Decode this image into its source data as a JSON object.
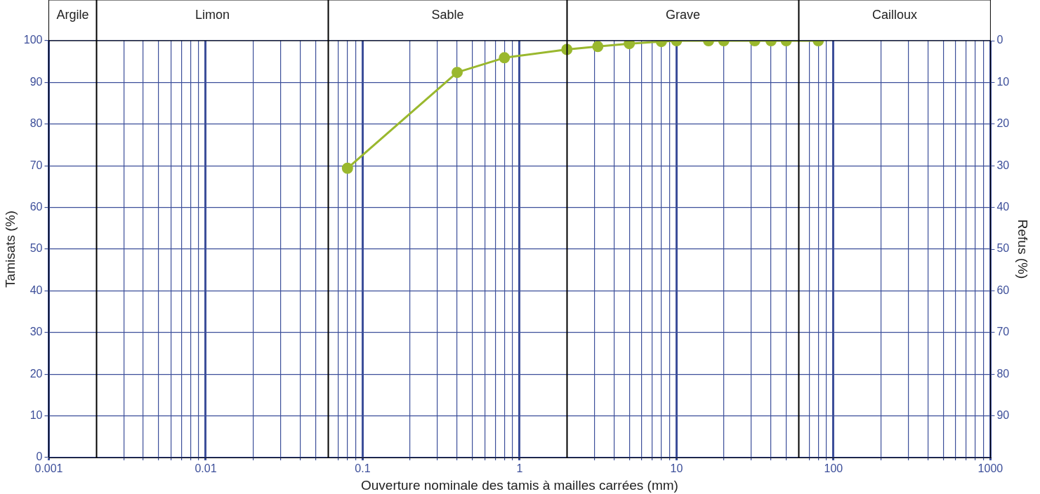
{
  "chart_data": {
    "type": "line",
    "xlabel": "Ouverture nominale des tamis à mailles carrées (mm)",
    "ylabel": "Tamisats (%)",
    "y2label": "Refus (%)",
    "x": [
      0.08,
      0.4,
      0.8,
      2,
      3.15,
      5,
      8,
      10,
      16,
      20,
      31.5,
      40,
      50,
      80
    ],
    "series": [
      {
        "color": "#9ab82e",
        "values": [
          69.4,
          92.4,
          95.9,
          97.9,
          98.6,
          99.3,
          99.8,
          100,
          100,
          100,
          100,
          100,
          100,
          100
        ]
      }
    ],
    "log": "x",
    "xlim": [
      0.001,
      1000
    ],
    "xticks": [
      0.001,
      {
        "value": 0.003,
        "label": null
      },
      {
        "value": 0.004,
        "label": null
      },
      {
        "value": 0.005,
        "label": null
      },
      {
        "value": 0.006,
        "label": null
      },
      {
        "value": 0.007,
        "label": null
      },
      {
        "value": 0.008,
        "label": null
      },
      {
        "value": 0.009,
        "label": null
      },
      0.01,
      {
        "value": 0.02,
        "label": null
      },
      {
        "value": 0.03,
        "label": null
      },
      {
        "value": 0.04,
        "label": null
      },
      {
        "value": 0.05,
        "label": null
      },
      {
        "value": 0.07,
        "label": null
      },
      {
        "value": 0.08,
        "label": null
      },
      {
        "value": 0.09,
        "label": null
      },
      0.1,
      {
        "value": 0.2,
        "label": null
      },
      {
        "value": 0.3,
        "label": null
      },
      {
        "value": 0.4,
        "label": null
      },
      {
        "value": 0.5,
        "label": null
      },
      {
        "value": 0.6,
        "label": null
      },
      {
        "value": 0.7,
        "label": null
      },
      {
        "value": 0.8,
        "label": null
      },
      {
        "value": 0.9,
        "label": null
      },
      1,
      {
        "value": 3,
        "label": null
      },
      {
        "value": 4,
        "label": null
      },
      {
        "value": 5,
        "label": null
      },
      {
        "value": 6,
        "label": null
      },
      {
        "value": 7,
        "label": null
      },
      {
        "value": 8,
        "label": null
      },
      {
        "value": 9,
        "label": null
      },
      10,
      {
        "value": 20,
        "label": null
      },
      {
        "value": 30,
        "label": null
      },
      {
        "value": 40,
        "label": null
      },
      {
        "value": 50,
        "label": null
      },
      {
        "value": 70,
        "label": null
      },
      {
        "value": 80,
        "label": null
      },
      {
        "value": 90,
        "label": null
      },
      100,
      {
        "value": 200,
        "label": null
      },
      {
        "value": 300,
        "label": null
      },
      {
        "value": 400,
        "label": null
      },
      {
        "value": 500,
        "label": null
      },
      {
        "value": 600,
        "label": null
      },
      {
        "value": 700,
        "label": null
      },
      {
        "value": 800,
        "label": null
      },
      {
        "value": 900,
        "label": null
      },
      1000
    ],
    "ylim": [
      0,
      100
    ],
    "yticks": [
      0,
      10,
      20,
      30,
      40,
      50,
      60,
      70,
      80,
      90,
      100
    ],
    "y2lim": [
      100,
      0
    ],
    "y2ticks": [
      0,
      10,
      20,
      30,
      40,
      50,
      60,
      70,
      80,
      90
    ],
    "ref_lines": [
      {
        "axis": "x",
        "value": 0.002,
        "color": "#000000"
      },
      {
        "axis": "x",
        "value": 0.06,
        "color": "#000000"
      },
      {
        "axis": "x",
        "value": 2,
        "color": "#000000"
      },
      {
        "axis": "x",
        "value": 60,
        "color": "#000000"
      }
    ],
    "annotations": [
      "Argile",
      "Limon",
      "Sable",
      "Grave",
      "Cailloux"
    ],
    "grid": true,
    "legend": false,
    "marker": "circle",
    "line_style": "solid"
  }
}
